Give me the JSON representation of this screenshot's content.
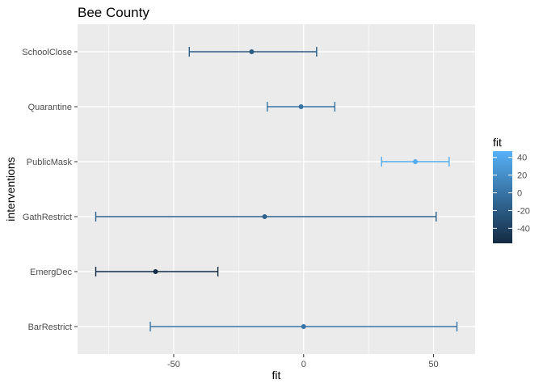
{
  "chart_data": {
    "type": "errorbar",
    "title": "Bee County",
    "xlabel": "fit",
    "ylabel": "interventions",
    "xlim": [
      -87,
      66
    ],
    "xticks": [
      -50,
      0,
      50
    ],
    "xtick_labels": [
      "-50",
      "0",
      "50"
    ],
    "grid": true,
    "categories": [
      "SchoolClose",
      "Quarantine",
      "PublicMask",
      "GathRestrict",
      "EmergDec",
      "BarRestrict"
    ],
    "points": [
      {
        "category": "SchoolClose",
        "fit": -20,
        "lower": -44,
        "upper": 5
      },
      {
        "category": "Quarantine",
        "fit": -1,
        "lower": -14,
        "upper": 12
      },
      {
        "category": "PublicMask",
        "fit": 43,
        "lower": 30,
        "upper": 56
      },
      {
        "category": "GathRestrict",
        "fit": -15,
        "lower": -80,
        "upper": 51
      },
      {
        "category": "EmergDec",
        "fit": -57,
        "lower": -80,
        "upper": -33
      },
      {
        "category": "BarRestrict",
        "fit": 0,
        "lower": -59,
        "upper": 59
      }
    ],
    "legend": {
      "title": "fit",
      "placement": "right",
      "range": [
        -57,
        47
      ],
      "ticks": [
        40,
        20,
        0,
        -20,
        -40
      ],
      "tick_labels": [
        "40",
        "20",
        "0",
        "-20",
        "-40"
      ],
      "color_low": "#132b43",
      "color_high": "#56b1f7"
    }
  }
}
